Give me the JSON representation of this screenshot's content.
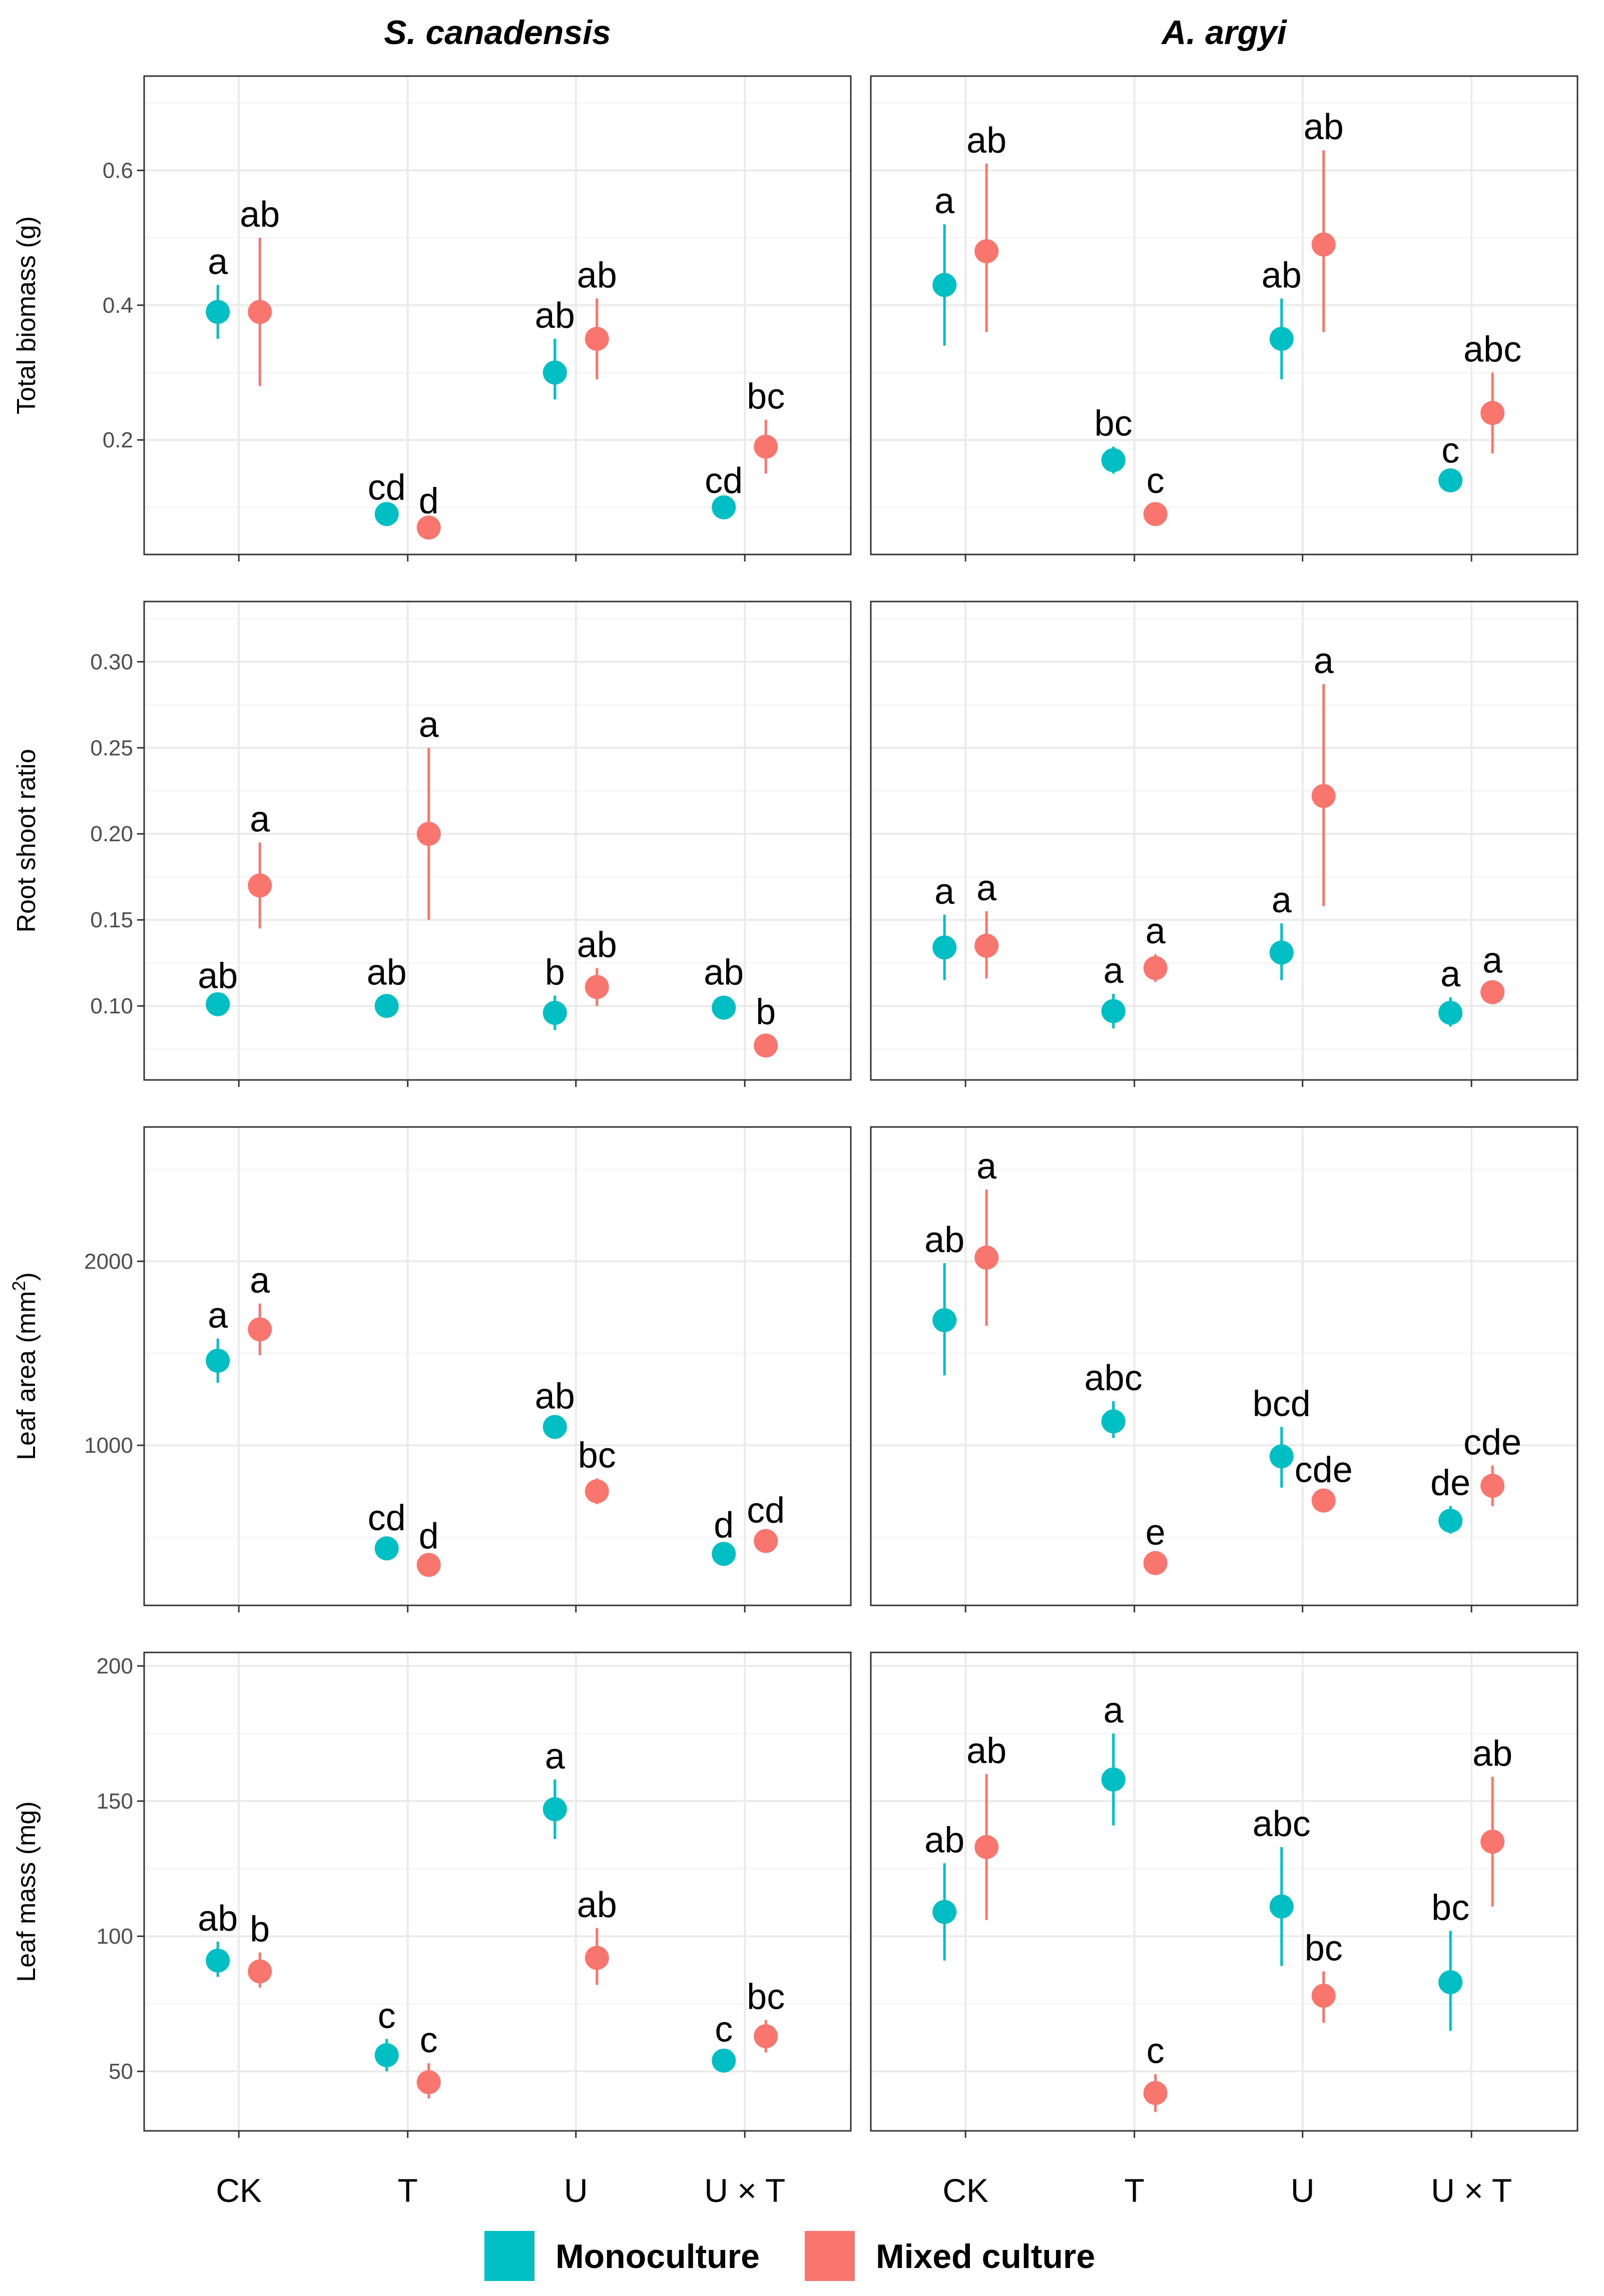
{
  "colors": {
    "monoculture": "#00bfc4",
    "mixed": "#f8766d"
  },
  "chart_data": [
    {
      "type": "scatter",
      "species": "S. canadensis",
      "ylabel": "Total biomass (g)",
      "ylim": [
        0.03,
        0.74
      ],
      "yticks": [
        0.2,
        0.4,
        0.6
      ],
      "ytick_labels": [
        "0.2",
        "0.4",
        "0.6"
      ],
      "categories": [
        "CK",
        "T",
        "U",
        "U × T"
      ],
      "series": [
        {
          "name": "Monoculture",
          "values": [
            0.39,
            0.09,
            0.3,
            0.1
          ],
          "lower": [
            0.35,
            0.085,
            0.26,
            0.095
          ],
          "upper": [
            0.43,
            0.095,
            0.35,
            0.105
          ],
          "labels": [
            "a",
            "cd",
            "ab",
            "cd"
          ]
        },
        {
          "name": "Mixed culture",
          "values": [
            0.39,
            0.07,
            0.35,
            0.19
          ],
          "lower": [
            0.28,
            0.065,
            0.29,
            0.15
          ],
          "upper": [
            0.5,
            0.075,
            0.41,
            0.23
          ],
          "labels": [
            "ab",
            "d",
            "ab",
            "bc"
          ]
        }
      ]
    },
    {
      "type": "scatter",
      "species": "A. argyi",
      "ylabel": "Total biomass (g)",
      "ylim": [
        0.03,
        0.74
      ],
      "yticks": [
        0.2,
        0.4,
        0.6
      ],
      "ytick_labels": [
        "0.2",
        "0.4",
        "0.6"
      ],
      "categories": [
        "CK",
        "T",
        "U",
        "U × T"
      ],
      "series": [
        {
          "name": "Monoculture",
          "values": [
            0.43,
            0.17,
            0.35,
            0.14
          ],
          "lower": [
            0.34,
            0.15,
            0.29,
            0.13
          ],
          "upper": [
            0.52,
            0.19,
            0.41,
            0.15
          ],
          "labels": [
            "a",
            "bc",
            "ab",
            "c"
          ]
        },
        {
          "name": "Mixed culture",
          "values": [
            0.48,
            0.09,
            0.49,
            0.24
          ],
          "lower": [
            0.36,
            0.075,
            0.36,
            0.18
          ],
          "upper": [
            0.61,
            0.105,
            0.63,
            0.3
          ],
          "labels": [
            "ab",
            "c",
            "ab",
            "abc"
          ]
        }
      ]
    },
    {
      "type": "scatter",
      "species": "S. canadensis",
      "ylabel": "Root shoot ratio",
      "ylim": [
        0.057,
        0.335
      ],
      "yticks": [
        0.1,
        0.15,
        0.2,
        0.25,
        0.3
      ],
      "ytick_labels": [
        "0.10",
        "0.15",
        "0.20",
        "0.25",
        "0.30"
      ],
      "categories": [
        "CK",
        "T",
        "U",
        "U × T"
      ],
      "series": [
        {
          "name": "Monoculture",
          "values": [
            0.101,
            0.1,
            0.096,
            0.099
          ],
          "lower": [
            0.098,
            0.095,
            0.086,
            0.093
          ],
          "upper": [
            0.104,
            0.106,
            0.106,
            0.106
          ],
          "labels": [
            "ab",
            "ab",
            "b",
            "ab"
          ]
        },
        {
          "name": "Mixed culture",
          "values": [
            0.17,
            0.2,
            0.111,
            0.077
          ],
          "lower": [
            0.145,
            0.15,
            0.1,
            0.071
          ],
          "upper": [
            0.195,
            0.25,
            0.122,
            0.083
          ],
          "labels": [
            "a",
            "a",
            "ab",
            "b"
          ]
        }
      ]
    },
    {
      "type": "scatter",
      "species": "A. argyi",
      "ylabel": "Root shoot ratio",
      "ylim": [
        0.057,
        0.335
      ],
      "yticks": [
        0.1,
        0.15,
        0.2,
        0.25,
        0.3
      ],
      "ytick_labels": [
        "0.10",
        "0.15",
        "0.20",
        "0.25",
        "0.30"
      ],
      "categories": [
        "CK",
        "T",
        "U",
        "U × T"
      ],
      "series": [
        {
          "name": "Monoculture",
          "values": [
            0.134,
            0.097,
            0.131,
            0.096
          ],
          "lower": [
            0.115,
            0.087,
            0.115,
            0.088
          ],
          "upper": [
            0.153,
            0.107,
            0.148,
            0.105
          ],
          "labels": [
            "a",
            "a",
            "a",
            "a"
          ]
        },
        {
          "name": "Mixed culture",
          "values": [
            0.135,
            0.122,
            0.222,
            0.108
          ],
          "lower": [
            0.116,
            0.114,
            0.158,
            0.103
          ],
          "upper": [
            0.155,
            0.13,
            0.287,
            0.113
          ],
          "labels": [
            "a",
            "a",
            "a",
            "a"
          ]
        }
      ]
    },
    {
      "type": "scatter",
      "species": "S. canadensis",
      "ylabel": "Leaf area (mm",
      "ylabel_sup": "2",
      "ylabel_end": ")",
      "ylim": [
        130,
        2730
      ],
      "yticks": [
        1000,
        2000
      ],
      "ytick_labels": [
        "1000",
        "2000"
      ],
      "categories": [
        "CK",
        "T",
        "U",
        "U × T"
      ],
      "series": [
        {
          "name": "Monoculture",
          "values": [
            1460,
            440,
            1100,
            410
          ],
          "lower": [
            1340,
            400,
            1060,
            380
          ],
          "upper": [
            1580,
            480,
            1140,
            440
          ],
          "labels": [
            "a",
            "cd",
            "ab",
            "d"
          ]
        },
        {
          "name": "Mixed culture",
          "values": [
            1630,
            350,
            750,
            480
          ],
          "lower": [
            1490,
            320,
            680,
            440
          ],
          "upper": [
            1770,
            380,
            820,
            520
          ],
          "labels": [
            "a",
            "d",
            "bc",
            "cd"
          ]
        }
      ]
    },
    {
      "type": "scatter",
      "species": "A. argyi",
      "ylabel": "Leaf area (mm",
      "ylabel_sup": "2",
      "ylabel_end": ")",
      "ylim": [
        130,
        2730
      ],
      "yticks": [
        1000,
        2000
      ],
      "ytick_labels": [
        "1000",
        "2000"
      ],
      "categories": [
        "CK",
        "T",
        "U",
        "U × T"
      ],
      "series": [
        {
          "name": "Monoculture",
          "values": [
            1680,
            1130,
            940,
            590
          ],
          "lower": [
            1380,
            1040,
            770,
            520
          ],
          "upper": [
            1990,
            1240,
            1100,
            670
          ],
          "labels": [
            "ab",
            "abc",
            "bcd",
            "de"
          ]
        },
        {
          "name": "Mixed culture",
          "values": [
            2020,
            360,
            700,
            780
          ],
          "lower": [
            1650,
            320,
            660,
            670
          ],
          "upper": [
            2390,
            400,
            740,
            890
          ],
          "labels": [
            "a",
            "e",
            "cde",
            "cde"
          ]
        }
      ]
    },
    {
      "type": "scatter",
      "species": "S. canadensis",
      "ylabel": "Leaf mass (mg)",
      "ylim": [
        28,
        205
      ],
      "yticks": [
        50,
        100,
        150,
        200
      ],
      "ytick_labels": [
        "50",
        "100",
        "150",
        "200"
      ],
      "categories": [
        "CK",
        "T",
        "U",
        "U × T"
      ],
      "series": [
        {
          "name": "Monoculture",
          "values": [
            91,
            56,
            147,
            54
          ],
          "lower": [
            85,
            50,
            136,
            51
          ],
          "upper": [
            98,
            62,
            158,
            57
          ],
          "labels": [
            "ab",
            "c",
            "a",
            "c"
          ]
        },
        {
          "name": "Mixed culture",
          "values": [
            87,
            46,
            92,
            63
          ],
          "lower": [
            81,
            40,
            82,
            57
          ],
          "upper": [
            94,
            53,
            103,
            69
          ],
          "labels": [
            "b",
            "c",
            "ab",
            "bc"
          ]
        }
      ]
    },
    {
      "type": "scatter",
      "species": "A. argyi",
      "ylabel": "Leaf mass (mg)",
      "ylim": [
        28,
        205
      ],
      "yticks": [
        50,
        100,
        150,
        200
      ],
      "ytick_labels": [
        "50",
        "100",
        "150",
        "200"
      ],
      "categories": [
        "CK",
        "T",
        "U",
        "U × T"
      ],
      "series": [
        {
          "name": "Monoculture",
          "values": [
            109,
            158,
            111,
            83
          ],
          "lower": [
            91,
            141,
            89,
            65
          ],
          "upper": [
            127,
            175,
            133,
            102
          ],
          "labels": [
            "ab",
            "a",
            "abc",
            "bc"
          ]
        },
        {
          "name": "Mixed culture",
          "values": [
            133,
            42,
            78,
            135
          ],
          "lower": [
            106,
            35,
            68,
            111
          ],
          "upper": [
            160,
            49,
            87,
            159
          ],
          "labels": [
            "ab",
            "c",
            "bc",
            "ab"
          ]
        }
      ]
    }
  ],
  "legend": {
    "items": [
      "Monoculture",
      "Mixed culture"
    ],
    "position": "bottom"
  }
}
